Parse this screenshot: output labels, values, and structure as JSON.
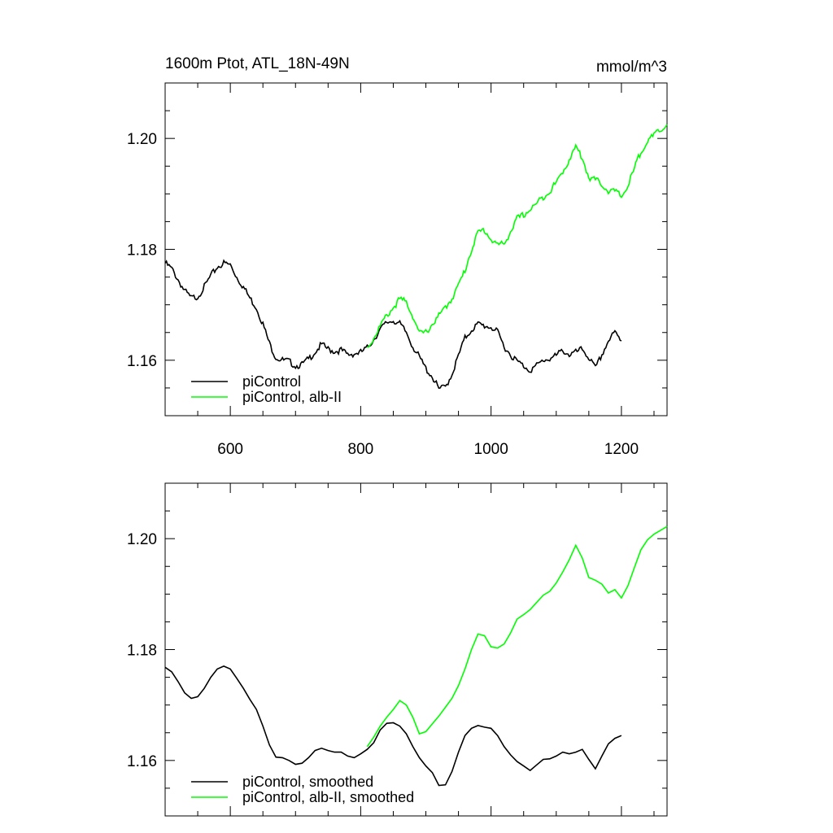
{
  "chart_data": [
    {
      "type": "line",
      "title": "1600m Ptot, ATL_18N-49N",
      "units": "mmol/m^3",
      "xlim": [
        500,
        1270
      ],
      "ylim": [
        1.15,
        1.21
      ],
      "xticks": [
        600,
        800,
        1000,
        1200
      ],
      "xtick_labels": [
        "600",
        "800",
        "1000",
        "1200"
      ],
      "yticks": [
        1.16,
        1.18,
        1.2
      ],
      "ytick_labels": [
        "1.16",
        "1.18",
        "1.20"
      ],
      "legend_position": "bottom-left",
      "grid": false,
      "series": [
        {
          "name": "piControl",
          "color": "#000000",
          "x": [
            500,
            510,
            520,
            530,
            540,
            550,
            560,
            570,
            580,
            590,
            600,
            610,
            620,
            630,
            640,
            650,
            660,
            670,
            680,
            690,
            700,
            710,
            720,
            730,
            740,
            750,
            760,
            770,
            780,
            790,
            800,
            810,
            820,
            830,
            840,
            850,
            860,
            870,
            880,
            890,
            900,
            910,
            920,
            930,
            940,
            950,
            960,
            970,
            980,
            990,
            1000,
            1010,
            1020,
            1030,
            1040,
            1050,
            1060,
            1070,
            1080,
            1090,
            1100,
            1110,
            1120,
            1130,
            1140,
            1150,
            1160,
            1170,
            1180,
            1190,
            1200
          ],
          "y": [
            1.1775,
            1.1765,
            1.1745,
            1.1725,
            1.1712,
            1.1715,
            1.1732,
            1.1752,
            1.1768,
            1.1775,
            1.1772,
            1.175,
            1.1732,
            1.1712,
            1.1695,
            1.1665,
            1.163,
            1.1605,
            1.16,
            1.1598,
            1.159,
            1.1592,
            1.1602,
            1.1615,
            1.1628,
            1.162,
            1.1616,
            1.1618,
            1.161,
            1.1612,
            1.1614,
            1.1622,
            1.1638,
            1.1655,
            1.1668,
            1.1672,
            1.1665,
            1.165,
            1.1625,
            1.1605,
            1.1585,
            1.157,
            1.1548,
            1.1552,
            1.1575,
            1.1608,
            1.164,
            1.1655,
            1.1665,
            1.1662,
            1.166,
            1.165,
            1.1625,
            1.161,
            1.1598,
            1.159,
            1.1582,
            1.159,
            1.16,
            1.1603,
            1.1608,
            1.1618,
            1.161,
            1.1614,
            1.162,
            1.1605,
            1.1585,
            1.161,
            1.1635,
            1.165,
            1.1635
          ]
        },
        {
          "name": "piControl, alb-II",
          "color": "#00ff00",
          "x": [
            810,
            820,
            830,
            840,
            850,
            860,
            870,
            880,
            890,
            900,
            910,
            920,
            930,
            940,
            950,
            960,
            970,
            980,
            990,
            1000,
            1010,
            1020,
            1030,
            1040,
            1050,
            1060,
            1070,
            1080,
            1090,
            1100,
            1110,
            1120,
            1130,
            1140,
            1150,
            1160,
            1170,
            1180,
            1190,
            1200,
            1210,
            1220,
            1230,
            1240,
            1250,
            1260,
            1270
          ],
          "y": [
            1.1622,
            1.164,
            1.1662,
            1.168,
            1.1695,
            1.171,
            1.1705,
            1.168,
            1.1648,
            1.165,
            1.1665,
            1.168,
            1.1695,
            1.1712,
            1.1735,
            1.1762,
            1.18,
            1.183,
            1.1835,
            1.1818,
            1.1808,
            1.181,
            1.1832,
            1.1855,
            1.1862,
            1.1872,
            1.1882,
            1.1895,
            1.1905,
            1.192,
            1.194,
            1.1962,
            1.1985,
            1.1965,
            1.193,
            1.1925,
            1.1918,
            1.1905,
            1.1905,
            1.1895,
            1.1915,
            1.1945,
            1.1978,
            1.1995,
            1.2005,
            1.2015,
            1.2025
          ]
        }
      ]
    },
    {
      "type": "line",
      "xlim": [
        500,
        1270
      ],
      "ylim": [
        1.15,
        1.21
      ],
      "yticks": [
        1.16,
        1.18,
        1.2
      ],
      "ytick_labels": [
        "1.16",
        "1.18",
        "1.20"
      ],
      "xticks": [
        600,
        800,
        1000,
        1200
      ],
      "legend_position": "bottom-left",
      "grid": false,
      "series": [
        {
          "name": "piControl, smoothed",
          "color": "#000000",
          "x": [
            500,
            510,
            520,
            530,
            540,
            550,
            560,
            570,
            580,
            590,
            600,
            610,
            620,
            630,
            640,
            650,
            660,
            670,
            680,
            690,
            700,
            710,
            720,
            730,
            740,
            750,
            760,
            770,
            780,
            790,
            800,
            810,
            820,
            830,
            840,
            850,
            860,
            870,
            880,
            890,
            900,
            910,
            920,
            930,
            940,
            950,
            960,
            970,
            980,
            990,
            1000,
            1010,
            1020,
            1030,
            1040,
            1050,
            1060,
            1070,
            1080,
            1090,
            1100,
            1110,
            1120,
            1130,
            1140,
            1150,
            1160,
            1170,
            1180,
            1190,
            1200
          ],
          "y": [
            1.1768,
            1.176,
            1.1742,
            1.1722,
            1.1712,
            1.1715,
            1.173,
            1.175,
            1.1765,
            1.177,
            1.1765,
            1.1748,
            1.173,
            1.171,
            1.1692,
            1.1662,
            1.1628,
            1.1606,
            1.1605,
            1.16,
            1.1593,
            1.1595,
            1.1605,
            1.1618,
            1.1622,
            1.1618,
            1.1615,
            1.1615,
            1.1608,
            1.1605,
            1.1612,
            1.162,
            1.1632,
            1.1655,
            1.1667,
            1.1668,
            1.1662,
            1.1648,
            1.1625,
            1.1605,
            1.159,
            1.1578,
            1.1555,
            1.1556,
            1.158,
            1.1615,
            1.1645,
            1.1658,
            1.1663,
            1.166,
            1.1658,
            1.1645,
            1.1625,
            1.161,
            1.1598,
            1.159,
            1.1582,
            1.1592,
            1.1602,
            1.1603,
            1.1608,
            1.1615,
            1.1612,
            1.1615,
            1.162,
            1.1602,
            1.1585,
            1.1608,
            1.163,
            1.164,
            1.1645
          ]
        },
        {
          "name": "piControl, alb-II, smoothed",
          "color": "#00ff00",
          "x": [
            810,
            820,
            830,
            840,
            850,
            860,
            870,
            880,
            890,
            900,
            910,
            920,
            930,
            940,
            950,
            960,
            970,
            980,
            990,
            1000,
            1010,
            1020,
            1030,
            1040,
            1050,
            1060,
            1070,
            1080,
            1090,
            1100,
            1110,
            1120,
            1130,
            1140,
            1150,
            1160,
            1170,
            1180,
            1190,
            1200,
            1210,
            1220,
            1230,
            1240,
            1250,
            1260,
            1270
          ],
          "y": [
            1.1625,
            1.1642,
            1.1662,
            1.1678,
            1.1692,
            1.1708,
            1.17,
            1.1678,
            1.1648,
            1.1652,
            1.1666,
            1.168,
            1.1696,
            1.1712,
            1.1735,
            1.1765,
            1.18,
            1.1828,
            1.1825,
            1.1805,
            1.1803,
            1.181,
            1.183,
            1.1855,
            1.1863,
            1.1872,
            1.1885,
            1.1898,
            1.1905,
            1.192,
            1.194,
            1.1962,
            1.1988,
            1.1965,
            1.193,
            1.1925,
            1.1918,
            1.1902,
            1.1908,
            1.1893,
            1.1915,
            1.1948,
            1.198,
            1.1998,
            1.2008,
            1.2015,
            1.2022
          ]
        }
      ]
    }
  ]
}
